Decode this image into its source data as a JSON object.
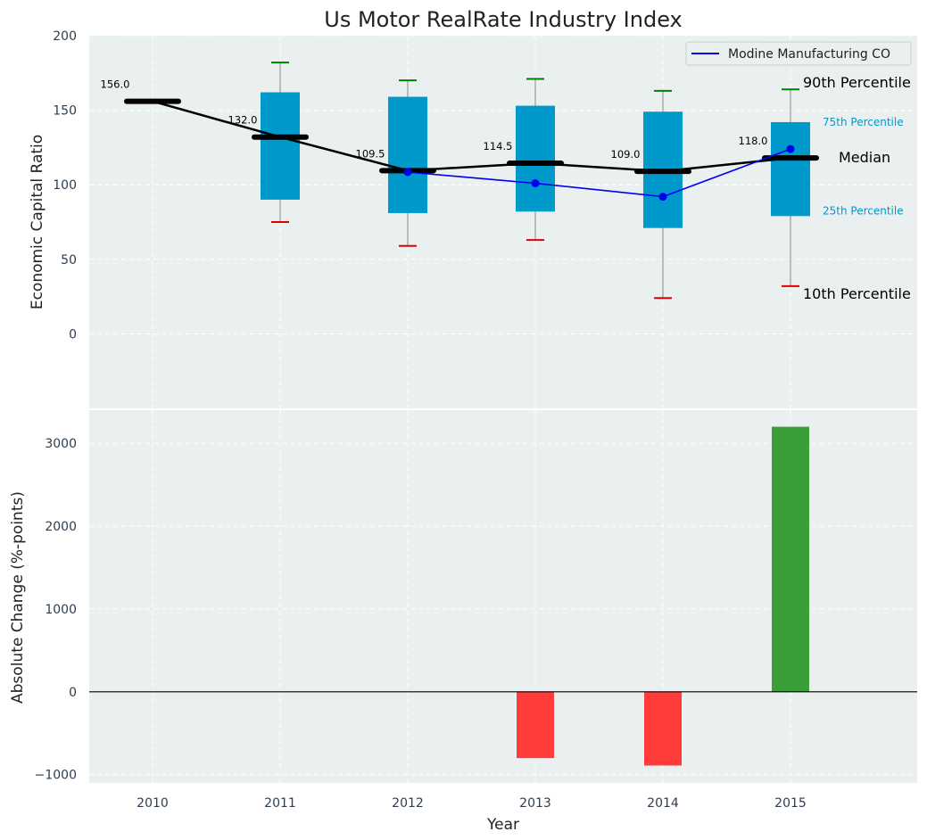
{
  "chart_data": {
    "type": "box",
    "title": "Us Motor RealRate Industry Index",
    "colors": {
      "panel_bg": "#EAEFF0",
      "box_fill": "#0099CC",
      "whisker_top": "#008000",
      "whisker_bottom": "#DD0000",
      "median_line": "#000000",
      "company_line": "#0000EE",
      "bar_positive": "#3A9E3A",
      "bar_negative": "#FF3B3B",
      "axis_text": "#2D3E50"
    },
    "x": {
      "label": "Year",
      "categories": [
        "2010",
        "2011",
        "2012",
        "2013",
        "2014",
        "2015"
      ]
    },
    "top_panel": {
      "ylabel": "Economic Capital Ratio",
      "ylim": [
        -50,
        200
      ],
      "yticks": [
        0,
        50,
        100,
        150,
        200
      ],
      "grid": true,
      "legend": {
        "position": "top-right",
        "entries": [
          "Modine Manufacturing CO"
        ]
      },
      "boxes": [
        {
          "year": "2010",
          "p10": null,
          "p25": null,
          "median": 156.0,
          "p75": null,
          "p90": null
        },
        {
          "year": "2011",
          "p10": 75,
          "p25": 90,
          "median": 132.0,
          "p75": 162,
          "p90": 182
        },
        {
          "year": "2012",
          "p10": 59,
          "p25": 81,
          "median": 109.5,
          "p75": 159,
          "p90": 170
        },
        {
          "year": "2013",
          "p10": 63,
          "p25": 82,
          "median": 114.5,
          "p75": 153,
          "p90": 171
        },
        {
          "year": "2014",
          "p10": 24,
          "p25": 71,
          "median": 109.0,
          "p75": 149,
          "p90": 163
        },
        {
          "year": "2015",
          "p10": 32,
          "p25": 79,
          "median": 118.0,
          "p75": 142,
          "p90": 164
        }
      ],
      "median_labels": [
        "156.0",
        "132.0",
        "109.5",
        "114.5",
        "109.0",
        "118.0"
      ],
      "company_series": {
        "name": "Modine Manufacturing CO",
        "x": [
          "2012",
          "2013",
          "2014",
          "2015"
        ],
        "values": [
          108.5,
          101,
          92,
          124
        ]
      },
      "annotations": {
        "p90": "90th Percentile",
        "p75": "75th Percentile",
        "median": "Median",
        "p25": "25th Percentile",
        "p10": "10th Percentile"
      }
    },
    "bottom_panel": {
      "ylabel": "Absolute Change (%-points)",
      "ylim": [
        -1100,
        3400
      ],
      "yticks": [
        -1000,
        0,
        1000,
        2000,
        3000
      ],
      "ytick_labels": [
        "−1000",
        "0",
        "1000",
        "2000",
        "3000"
      ],
      "grid": true,
      "bars": {
        "x": [
          "2013",
          "2014",
          "2015"
        ],
        "values": [
          -800,
          -890,
          3200
        ]
      }
    }
  }
}
